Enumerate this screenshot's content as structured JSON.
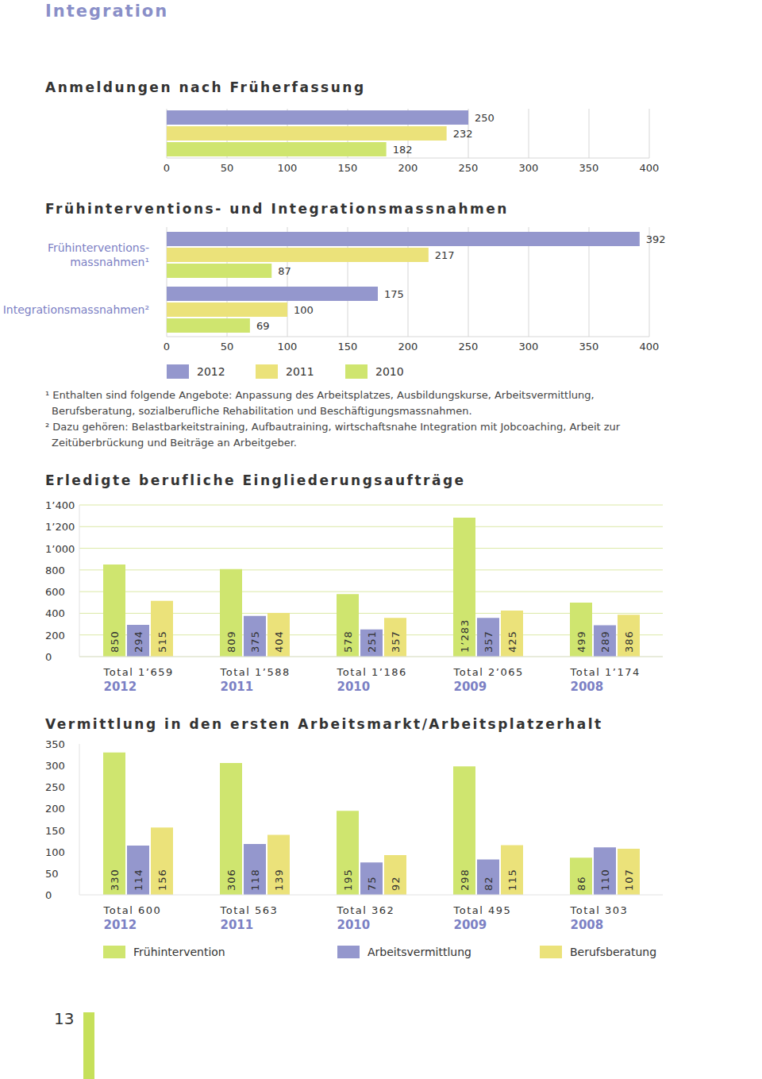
{
  "header": {
    "title": "Integration"
  },
  "chart_data": [
    {
      "type": "bar",
      "title": "Anmeldungen nach Früherfassung",
      "orientation": "horizontal",
      "categories": [
        null
      ],
      "series": [
        {
          "color": "#9497cd",
          "values": [
            250
          ]
        },
        {
          "color": "#ebe27a",
          "values": [
            232
          ]
        },
        {
          "color": "#cfe56f",
          "values": [
            182
          ]
        }
      ],
      "xlim": [
        0,
        400
      ],
      "xticks": [
        0,
        50,
        100,
        150,
        200,
        250,
        300,
        350,
        400
      ],
      "grid": true,
      "data_labels": true
    },
    {
      "type": "bar",
      "title": "Frühinterventions- und Integrationsmassnahmen",
      "orientation": "horizontal",
      "categories": [
        "Frühinterventions-\nmassnahmen¹",
        "Integrationsmassnahmen²"
      ],
      "series": [
        {
          "name": "2012",
          "color": "#9497cd",
          "values": [
            392,
            175
          ]
        },
        {
          "name": "2011",
          "color": "#ebe27a",
          "values": [
            217,
            100
          ]
        },
        {
          "name": "2010",
          "color": "#cfe56f",
          "values": [
            87,
            69
          ]
        }
      ],
      "xlim": [
        0,
        400
      ],
      "xticks": [
        0,
        50,
        100,
        150,
        200,
        250,
        300,
        350,
        400
      ],
      "grid": true,
      "data_labels": true,
      "legend": "bottom"
    },
    {
      "type": "bar",
      "title": "Erledigte berufliche Eingliederungsaufträge",
      "categories": [
        "2012",
        "2011",
        "2010",
        "2009",
        "2008"
      ],
      "total_labels": [
        "Total 1’659",
        "Total 1’588",
        "Total 1’186",
        "Total 2’065",
        "Total 1’174"
      ],
      "series": [
        {
          "color": "#cfe56f",
          "values": [
            850,
            809,
            578,
            1283,
            499
          ],
          "value_labels": [
            "850",
            "809",
            "578",
            "1’283",
            "499"
          ]
        },
        {
          "color": "#9497cd",
          "values": [
            294,
            375,
            251,
            357,
            289
          ]
        },
        {
          "color": "#ebe27a",
          "values": [
            515,
            404,
            357,
            425,
            386
          ]
        }
      ],
      "ylim": [
        0,
        1400
      ],
      "yticks": [
        0,
        200,
        400,
        600,
        800,
        {
          "value": 1000,
          "label": "1’000"
        },
        {
          "value": 1200,
          "label": "1’200"
        },
        {
          "value": 1400,
          "label": "1’400"
        }
      ],
      "grid": true,
      "data_labels": true
    },
    {
      "type": "bar",
      "title": "Vermittlung in den ersten Arbeitsmarkt/Arbeitsplatzerhalt",
      "categories": [
        "2012",
        "2011",
        "2010",
        "2009",
        "2008"
      ],
      "total_labels": [
        "Total 600",
        "Total 563",
        "Total 362",
        "Total 495",
        "Total 303"
      ],
      "series": [
        {
          "name": "Frühintervention",
          "color": "#cfe56f",
          "values": [
            330,
            306,
            195,
            298,
            86
          ]
        },
        {
          "name": "Arbeitsvermittlung",
          "color": "#9497cd",
          "values": [
            114,
            118,
            75,
            82,
            110
          ]
        },
        {
          "name": "Berufsberatung",
          "color": "#ebe27a",
          "values": [
            156,
            139,
            92,
            115,
            107
          ]
        }
      ],
      "ylim": [
        0,
        350
      ],
      "yticks": [
        0,
        50,
        100,
        150,
        200,
        250,
        300,
        350
      ],
      "grid": false,
      "data_labels": true,
      "legend": "bottom"
    }
  ],
  "footnotes": [
    "¹ Enthalten sind folgende Angebote: Anpassung des Arbeitsplatzes, Ausbildungskurse, Arbeitsvermittlung, Berufsberatung, sozialberufliche Rehabilitation und Beschäftigungsmassnahmen.",
    "² Dazu gehören: Belastbarkeitstraining, Aufbautraining, wirtschaftsnahe Integration mit Jobcoaching, Arbeit zur Zeitüberbrückung und Beiträge an Arbeitgeber."
  ],
  "page_number": "13"
}
